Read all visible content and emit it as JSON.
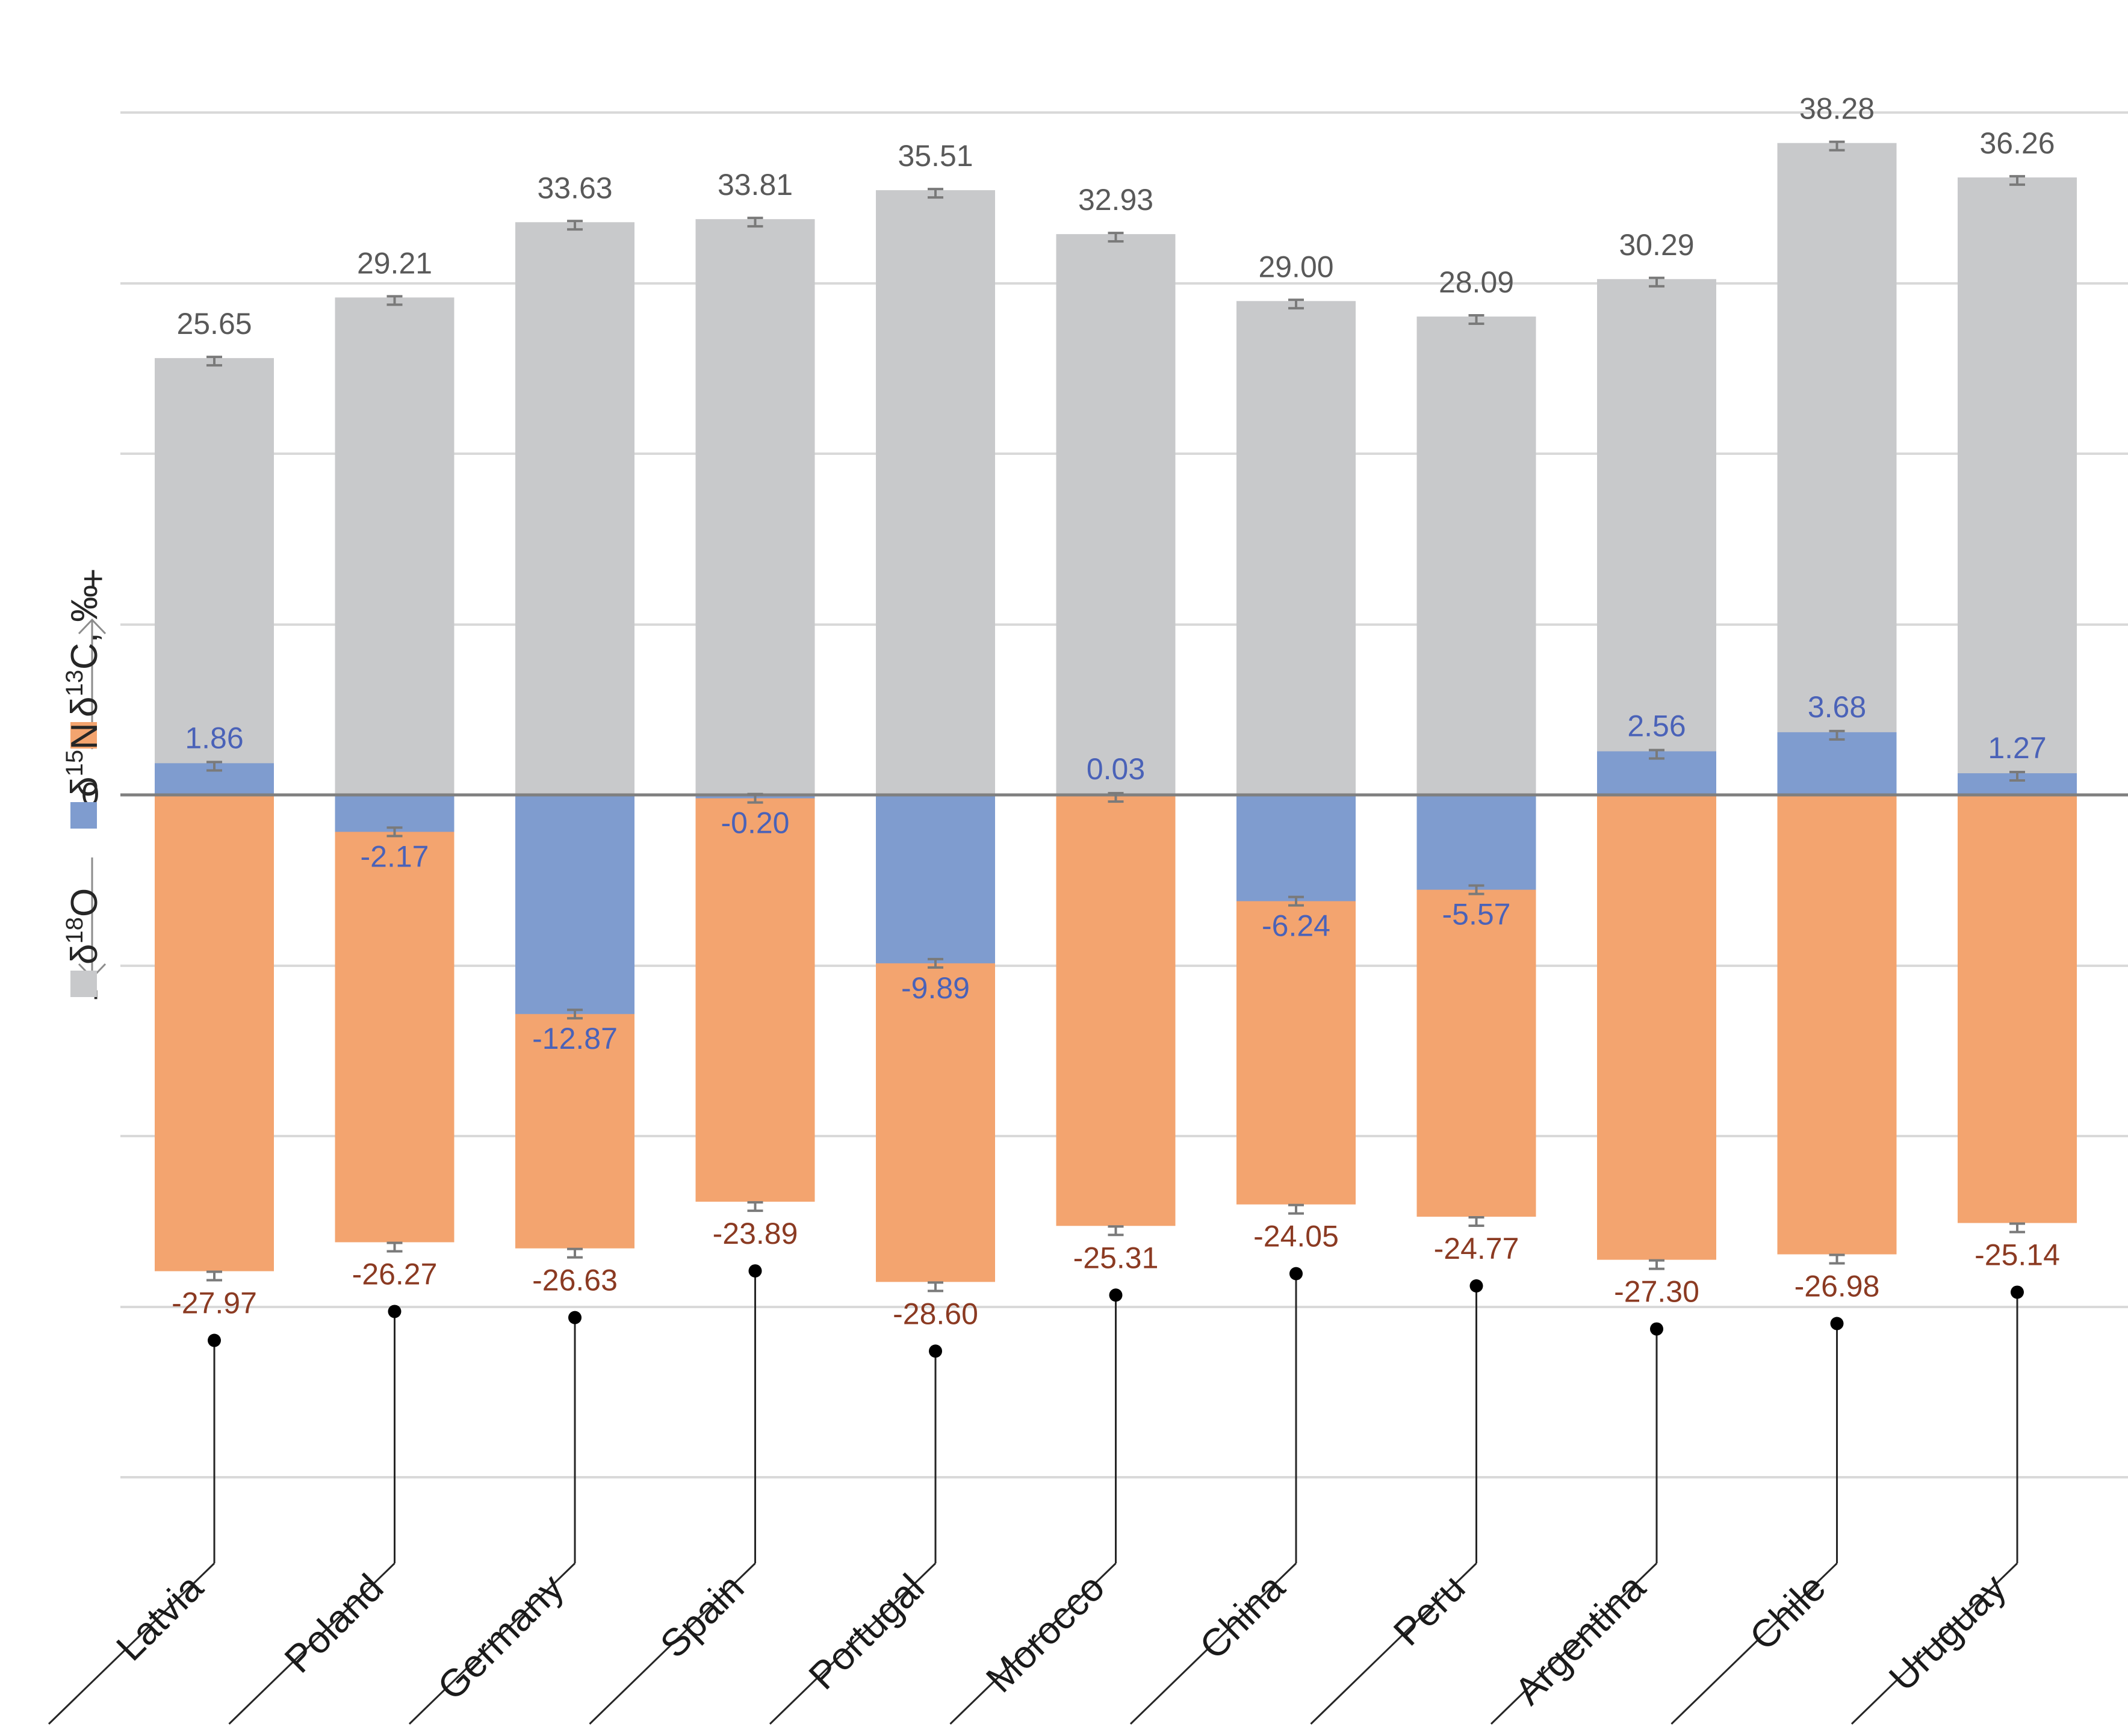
{
  "chart_data": {
    "type": "bar",
    "subtype": "overlapping bars with error bars",
    "categories": [
      "Latvia",
      "Poland",
      "Germany",
      "Spain",
      "Portugal",
      "Morocco",
      "China",
      "Peru",
      "Argentina",
      "Chile",
      "Uruguay"
    ],
    "series": [
      {
        "name": "δ18O",
        "color": "#c8c9cb",
        "label_color": "#595959",
        "values": [
          25.65,
          29.21,
          33.63,
          33.81,
          35.51,
          32.93,
          29.0,
          28.09,
          30.29,
          38.28,
          36.26
        ],
        "labels": [
          "25.65",
          "29.21",
          "33.63",
          "33.81",
          "35.51",
          "32.93",
          "29.00",
          "28.09",
          "30.29",
          "38.28",
          "36.26"
        ]
      },
      {
        "name": "δ15N",
        "color": "#7f9ccf",
        "label_color": "#4a62b8",
        "values": [
          1.86,
          -2.17,
          -12.87,
          -0.2,
          -9.89,
          0.03,
          -6.24,
          -5.57,
          2.56,
          3.68,
          1.27
        ],
        "labels": [
          "1.86",
          "-2.17",
          "-12.87",
          "-0.20",
          "-9.89",
          "0.03",
          "-6.24",
          "-5.57",
          "2.56",
          "3.68",
          "1.27"
        ]
      },
      {
        "name": "δ13C",
        "color": "#f3a46f",
        "label_color": "#8b3a22",
        "values": [
          -27.97,
          -26.27,
          -26.63,
          -23.89,
          -28.6,
          -25.31,
          -24.05,
          -24.77,
          -27.3,
          -26.98,
          -25.14
        ],
        "labels": [
          "-27.97",
          "-26.27",
          "-26.63",
          "-23.89",
          "-28.60",
          "-25.31",
          "-24.05",
          "-24.77",
          "-27.30",
          "-26.98",
          "-25.14"
        ]
      }
    ],
    "ylabel": {
      "parts": [
        "δ",
        "18",
        "O",
        "δ",
        "15",
        "N",
        "δ",
        "13",
        "C, ‰"
      ],
      "plus": "+",
      "minus": "-"
    },
    "zero_label": "0",
    "ylim": [
      -42,
      47
    ],
    "grid": true,
    "legend": "embedded in y-axis label (left)"
  }
}
